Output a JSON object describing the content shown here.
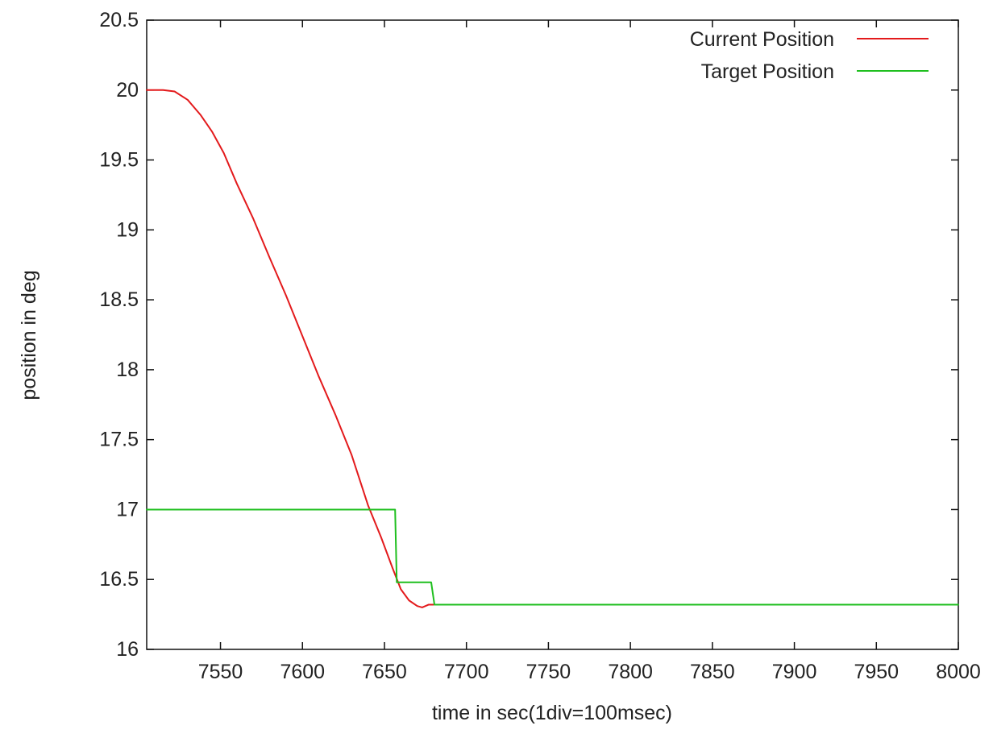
{
  "chart_data": {
    "type": "line",
    "title": "",
    "xlabel": "time in sec(1div=100msec)",
    "ylabel": "position in deg",
    "xlim": [
      7505,
      8000
    ],
    "ylim": [
      16,
      20.5
    ],
    "x_ticks": [
      7550,
      7600,
      7650,
      7700,
      7750,
      7800,
      7850,
      7900,
      7950,
      8000
    ],
    "y_ticks": [
      16,
      16.5,
      17,
      17.5,
      18,
      18.5,
      19,
      19.5,
      20,
      20.5
    ],
    "x_tick_labels": [
      "7550",
      "7600",
      "7650",
      "7700",
      "7750",
      "7800",
      "7850",
      "7900",
      "7950",
      "8000"
    ],
    "y_tick_labels": [
      "16",
      "16.5",
      "17",
      "17.5",
      "18",
      "18.5",
      "19",
      "19.5",
      "20",
      "20.5"
    ],
    "grid": false,
    "legend_position": "top-right",
    "series": [
      {
        "name": "Current Position",
        "color": "#e31a1c",
        "points": [
          [
            7505,
            20.0
          ],
          [
            7515,
            20.0
          ],
          [
            7522,
            19.99
          ],
          [
            7530,
            19.93
          ],
          [
            7538,
            19.82
          ],
          [
            7545,
            19.7
          ],
          [
            7552,
            19.55
          ],
          [
            7560,
            19.33
          ],
          [
            7570,
            19.08
          ],
          [
            7580,
            18.8
          ],
          [
            7590,
            18.53
          ],
          [
            7600,
            18.24
          ],
          [
            7610,
            17.95
          ],
          [
            7620,
            17.68
          ],
          [
            7630,
            17.39
          ],
          [
            7640,
            17.03
          ],
          [
            7648,
            16.8
          ],
          [
            7655,
            16.58
          ],
          [
            7660,
            16.43
          ],
          [
            7665,
            16.35
          ],
          [
            7670,
            16.31
          ],
          [
            7673,
            16.3
          ],
          [
            7677,
            16.32
          ],
          [
            7680,
            16.32
          ]
        ]
      },
      {
        "name": "Target Position",
        "color": "#1fbf1f",
        "points": [
          [
            7505,
            17.0
          ],
          [
            7656.5,
            17.0
          ],
          [
            7657.5,
            16.48
          ],
          [
            7678.5,
            16.48
          ],
          [
            7680.5,
            16.32
          ],
          [
            8000,
            16.32
          ]
        ]
      }
    ]
  }
}
